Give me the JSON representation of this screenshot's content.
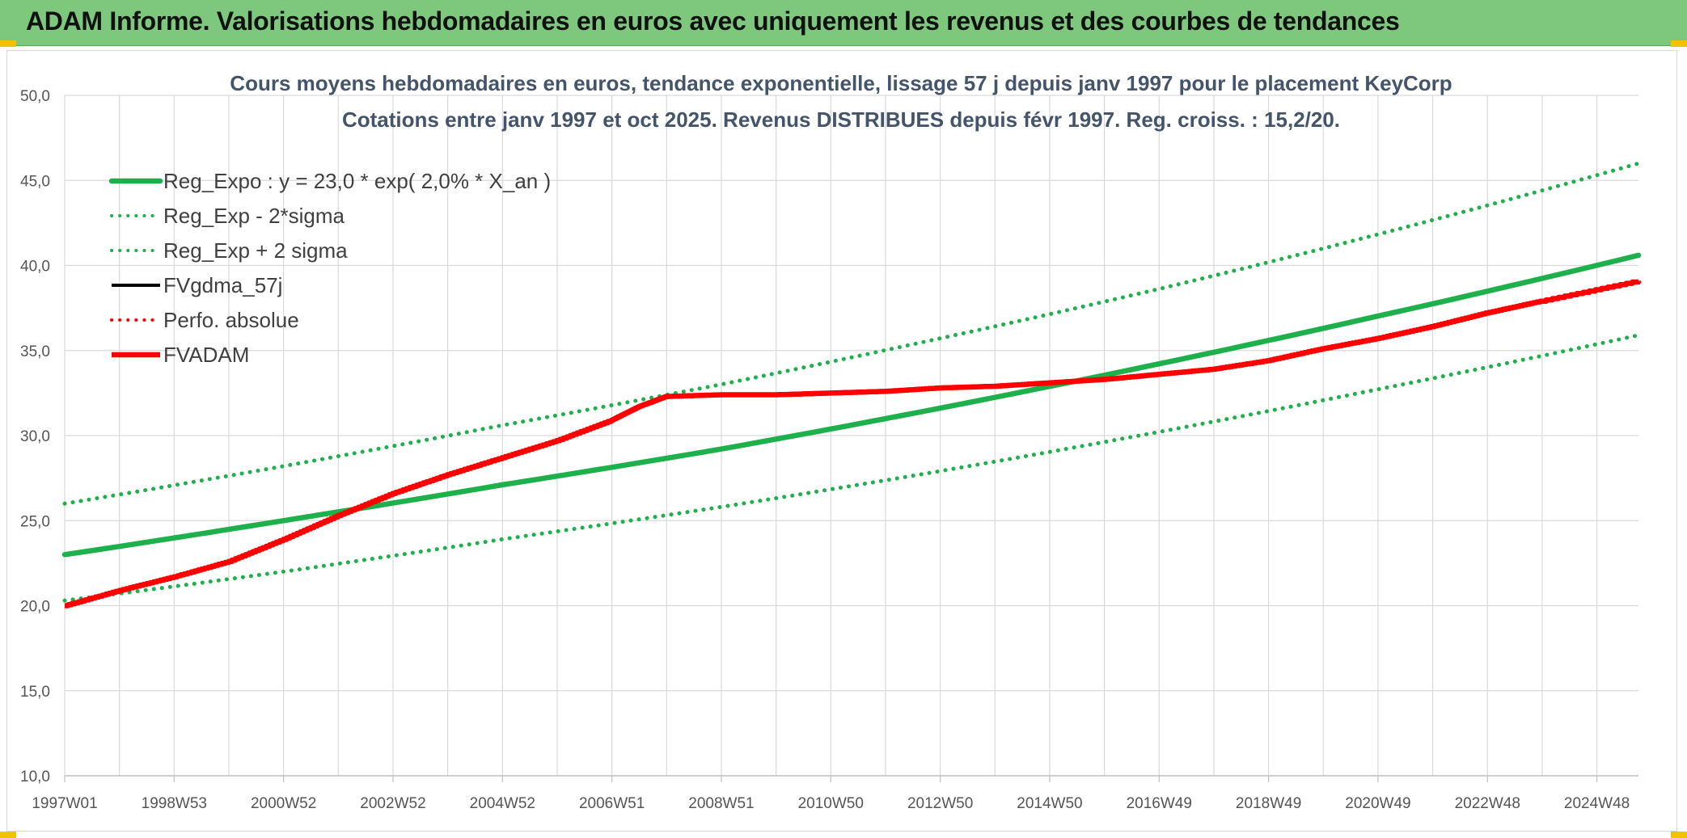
{
  "header": {
    "title": "ADAM Informe. Valorisations hebdomadaires en euros avec uniquement les revenus et des courbes de tendances"
  },
  "colors": {
    "header_bg": "#7ec87e",
    "green": "#1db04b",
    "red": "#ff0000",
    "black": "#000000",
    "grid": "#d9d9d9",
    "title": "#44546a"
  },
  "chart_data": {
    "type": "line",
    "title": "Cours moyens hebdomadaires en euros, tendance exponentielle, lissage 57 j depuis janv 1997 pour le placement KeyCorp",
    "subtitle": "Cotations entre janv 1997 et oct 2025. Revenus DISTRIBUES depuis févr 1997. Reg. croiss. : 15,2/20.",
    "xlabel": "",
    "ylabel": "",
    "ylim": [
      10,
      50
    ],
    "yticks": [
      "10,0",
      "15,0",
      "20,0",
      "25,0",
      "30,0",
      "35,0",
      "40,0",
      "45,0",
      "50,0"
    ],
    "xlim": [
      1997.0,
      2025.8
    ],
    "xtick_labels": [
      "1997W01",
      "1998W53",
      "2000W52",
      "2002W52",
      "2004W52",
      "2006W51",
      "2008W51",
      "2010W50",
      "2012W50",
      "2014W50",
      "2016W49",
      "2018W49",
      "2020W49",
      "2022W48",
      "2024W48"
    ],
    "grid": true,
    "legend_position": "top-left",
    "series": [
      {
        "name": "Reg_Expo : y = 23,0 * exp( 2,0% *  X_an )",
        "style": "solid-thick",
        "color": "#1db04b",
        "x": [
          1997.0,
          2001.0,
          2005.0,
          2009.0,
          2013.0,
          2017.0,
          2021.0,
          2025.8
        ],
        "y": [
          23.0,
          25.0,
          27.1,
          29.2,
          31.6,
          34.2,
          37.0,
          40.6
        ]
      },
      {
        "name": "Reg_Exp - 2*sigma",
        "style": "dotted",
        "color": "#1db04b",
        "x": [
          1997.0,
          2001.0,
          2005.0,
          2009.0,
          2013.0,
          2017.0,
          2021.0,
          2025.8
        ],
        "y": [
          20.3,
          22.0,
          23.9,
          25.8,
          27.9,
          30.2,
          32.7,
          35.9
        ]
      },
      {
        "name": "Reg_Exp + 2 sigma",
        "style": "dotted",
        "color": "#1db04b",
        "x": [
          1997.0,
          2001.0,
          2005.0,
          2009.0,
          2013.0,
          2017.0,
          2021.0,
          2025.8
        ],
        "y": [
          26.0,
          28.2,
          30.6,
          33.0,
          35.7,
          38.6,
          41.8,
          46.0
        ]
      },
      {
        "name": "FVgdma_57j",
        "style": "solid",
        "color": "#000000",
        "x": [],
        "y": []
      },
      {
        "name": "Perfo. absolue",
        "style": "dotted",
        "color": "#ff0000",
        "x": [],
        "y": []
      },
      {
        "name": "FVADAM",
        "style": "solid-thick-stepped",
        "color": "#ff0000",
        "x": [
          1997.0,
          1998.0,
          1999.0,
          2000.0,
          2001.0,
          2002.0,
          2003.0,
          2004.0,
          2005.0,
          2006.0,
          2007.0,
          2007.5,
          2008.0,
          2009.0,
          2010.0,
          2011.0,
          2012.0,
          2013.0,
          2014.0,
          2015.0,
          2016.0,
          2017.0,
          2018.0,
          2019.0,
          2020.0,
          2021.0,
          2022.0,
          2023.0,
          2024.0,
          2025.8
        ],
        "y": [
          20.0,
          20.9,
          21.7,
          22.6,
          23.9,
          25.3,
          26.6,
          27.7,
          28.7,
          29.7,
          30.9,
          31.7,
          32.3,
          32.4,
          32.4,
          32.5,
          32.6,
          32.8,
          32.9,
          33.1,
          33.3,
          33.6,
          33.9,
          34.4,
          35.1,
          35.7,
          36.4,
          37.2,
          37.9,
          39.1
        ]
      }
    ]
  }
}
